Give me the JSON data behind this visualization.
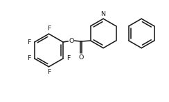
{
  "background": "#ffffff",
  "line_color": "#1a1a1a",
  "line_width": 1.15,
  "font_size": 6.8,
  "figsize": [
    2.44,
    1.48
  ],
  "dpi": 100,
  "xlim": [
    -1,
    11
  ],
  "ylim": [
    -0.5,
    6.5
  ]
}
